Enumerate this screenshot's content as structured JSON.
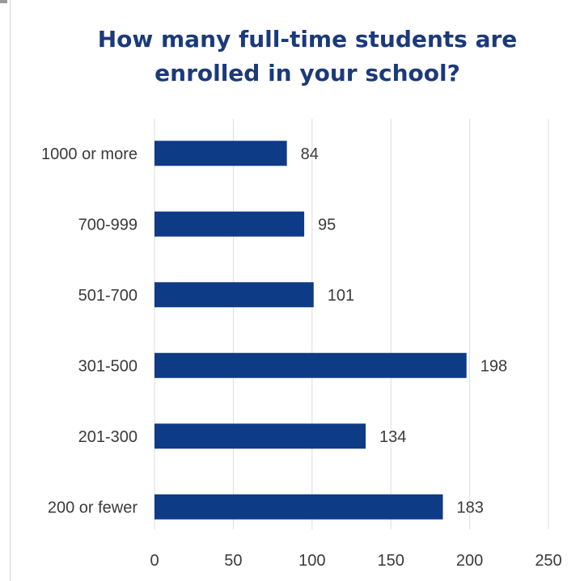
{
  "chart_data": {
    "type": "bar",
    "orientation": "horizontal",
    "title": "How many full-time students are\nenrolled in your school?",
    "categories": [
      "1000 or more",
      "700-999",
      "501-700",
      "301-500",
      "201-300",
      "200 or fewer"
    ],
    "values": [
      84,
      95,
      101,
      198,
      134,
      183
    ],
    "xlim": [
      0,
      250
    ],
    "xticks": [
      0,
      50,
      100,
      150,
      200,
      250
    ],
    "grid": true,
    "data_labels": true,
    "colors": {
      "bar": "#0e3b86",
      "title": "#1c3a7a",
      "grid": "#dcdcdc",
      "text": "#3a3a3a"
    }
  }
}
